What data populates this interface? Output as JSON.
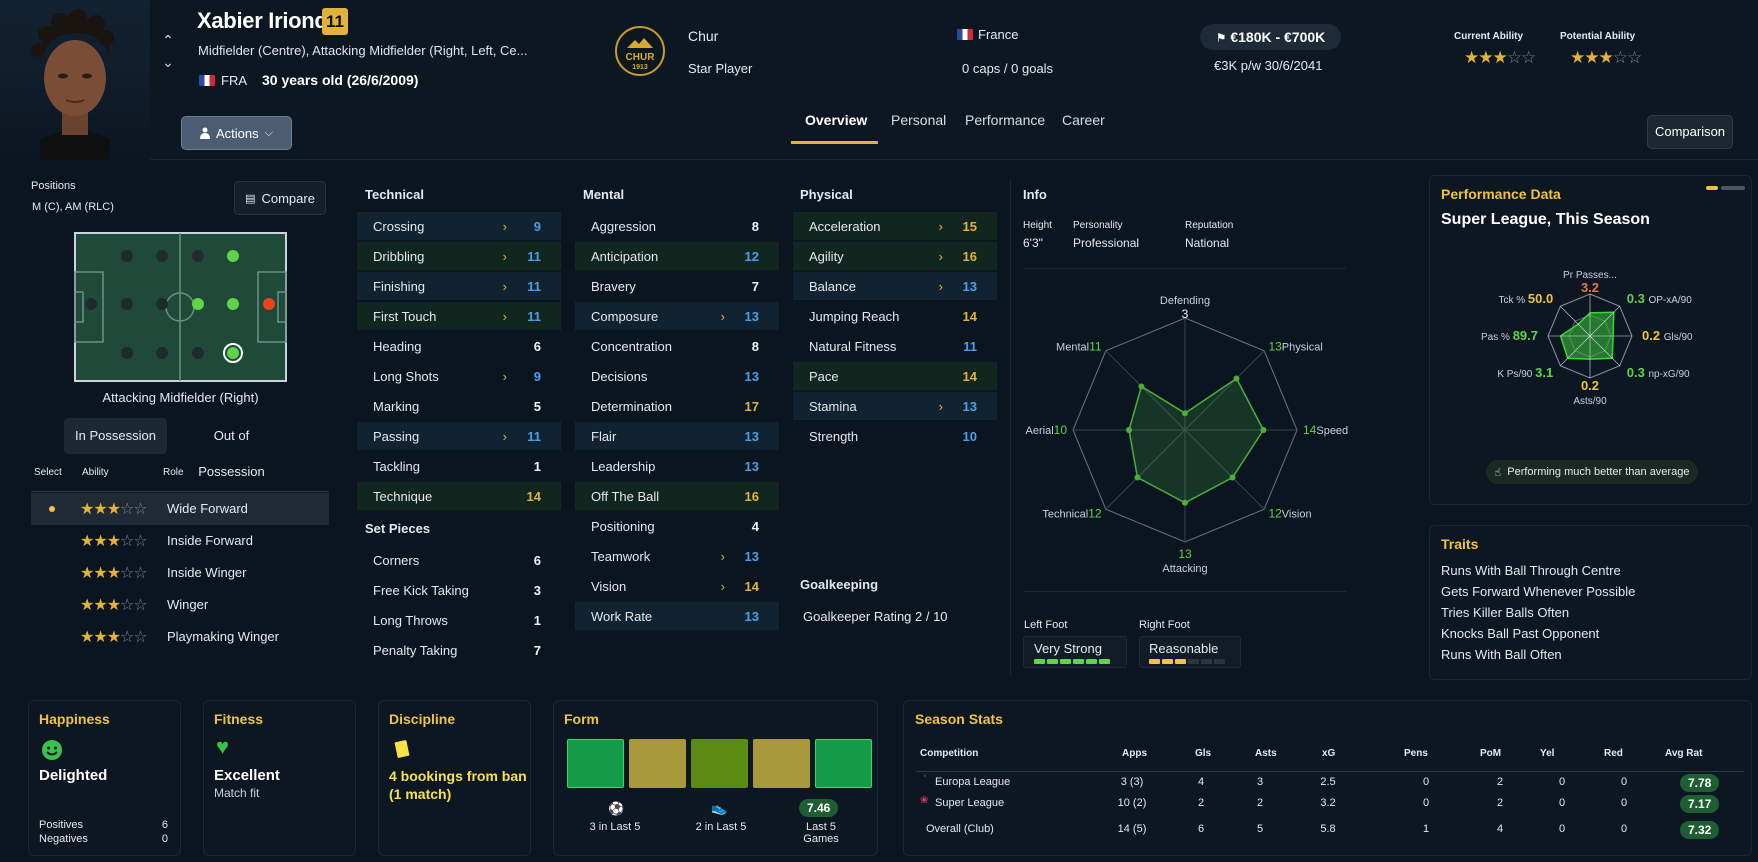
{
  "player": {
    "name": "Xabier Iriondo",
    "number": "11",
    "positions_long": "Midfielder (Centre), Attacking Midfielder (Right, Left, Ce...",
    "nationality_code": "FRA",
    "age": "30 years old (26/6/2009)",
    "club": "Chur",
    "club_crest_text": "CHUR",
    "club_crest_year": "1913",
    "status": "Star Player",
    "country": "France",
    "caps": "0 caps / 0 goals",
    "value": "€180K - €700K",
    "wage": "€3K p/w 30/6/2041",
    "current_ability_label": "Current Ability",
    "potential_ability_label": "Potential Ability",
    "current_ability_stars": 3,
    "potential_ability_stars": 3
  },
  "header": {
    "actions_label": "Actions",
    "tabs": [
      "Overview",
      "Personal",
      "Performance",
      "Career"
    ],
    "comparison_label": "Comparison"
  },
  "positions": {
    "label": "Positions",
    "value": "M (C), AM (RLC)",
    "compare_label": "Compare",
    "selected_position": "Attacking Midfielder (Right)",
    "tab_in": "In Possession",
    "tab_out": "Out of Possession",
    "col_select": "Select",
    "col_ability": "Ability",
    "col_role": "Role",
    "roles": [
      {
        "stars": 3,
        "name": "Wide Forward",
        "selected": true
      },
      {
        "stars": 3,
        "name": "Inside Forward",
        "selected": false
      },
      {
        "stars": 3,
        "name": "Inside Winger",
        "selected": false
      },
      {
        "stars": 3,
        "name": "Winger",
        "selected": false
      },
      {
        "stars": 3,
        "name": "Playmaking Winger",
        "selected": false
      }
    ]
  },
  "technical": {
    "title": "Technical",
    "attrs": [
      {
        "name": "Crossing",
        "value": "9",
        "arrow": true,
        "color": "blue",
        "hl": "b"
      },
      {
        "name": "Dribbling",
        "value": "11",
        "arrow": true,
        "color": "blue",
        "hl": "g"
      },
      {
        "name": "Finishing",
        "value": "11",
        "arrow": true,
        "color": "blue",
        "hl": "b"
      },
      {
        "name": "First Touch",
        "value": "11",
        "arrow": true,
        "color": "blue",
        "hl": "g"
      },
      {
        "name": "Heading",
        "value": "6",
        "arrow": false,
        "color": "white",
        "hl": ""
      },
      {
        "name": "Long Shots",
        "value": "9",
        "arrow": true,
        "color": "blue",
        "hl": ""
      },
      {
        "name": "Marking",
        "value": "5",
        "arrow": false,
        "color": "white",
        "hl": ""
      },
      {
        "name": "Passing",
        "value": "11",
        "arrow": true,
        "color": "blue",
        "hl": "b"
      },
      {
        "name": "Tackling",
        "value": "1",
        "arrow": false,
        "color": "white",
        "hl": ""
      },
      {
        "name": "Technique",
        "value": "14",
        "arrow": false,
        "color": "yellow",
        "hl": "g"
      }
    ]
  },
  "set_pieces": {
    "title": "Set Pieces",
    "attrs": [
      {
        "name": "Corners",
        "value": "6",
        "arrow": false,
        "color": "white",
        "hl": ""
      },
      {
        "name": "Free Kick Taking",
        "value": "3",
        "arrow": false,
        "color": "white",
        "hl": ""
      },
      {
        "name": "Long Throws",
        "value": "1",
        "arrow": false,
        "color": "white",
        "hl": ""
      },
      {
        "name": "Penalty Taking",
        "value": "7",
        "arrow": false,
        "color": "white",
        "hl": ""
      }
    ]
  },
  "mental": {
    "title": "Mental",
    "attrs": [
      {
        "name": "Aggression",
        "value": "8",
        "arrow": false,
        "color": "white",
        "hl": ""
      },
      {
        "name": "Anticipation",
        "value": "12",
        "arrow": false,
        "color": "blue",
        "hl": "g"
      },
      {
        "name": "Bravery",
        "value": "7",
        "arrow": false,
        "color": "white",
        "hl": ""
      },
      {
        "name": "Composure",
        "value": "13",
        "arrow": true,
        "color": "blue",
        "hl": "b"
      },
      {
        "name": "Concentration",
        "value": "8",
        "arrow": false,
        "color": "white",
        "hl": ""
      },
      {
        "name": "Decisions",
        "value": "13",
        "arrow": false,
        "color": "blue",
        "hl": ""
      },
      {
        "name": "Determination",
        "value": "17",
        "arrow": false,
        "color": "yellow",
        "hl": ""
      },
      {
        "name": "Flair",
        "value": "13",
        "arrow": false,
        "color": "blue",
        "hl": "b"
      },
      {
        "name": "Leadership",
        "value": "13",
        "arrow": false,
        "color": "blue",
        "hl": ""
      },
      {
        "name": "Off The Ball",
        "value": "16",
        "arrow": false,
        "color": "yellow",
        "hl": "g"
      },
      {
        "name": "Positioning",
        "value": "4",
        "arrow": false,
        "color": "white",
        "hl": ""
      },
      {
        "name": "Teamwork",
        "value": "13",
        "arrow": true,
        "color": "blue",
        "hl": ""
      },
      {
        "name": "Vision",
        "value": "14",
        "arrow": true,
        "color": "yellow",
        "hl": ""
      },
      {
        "name": "Work Rate",
        "value": "13",
        "arrow": false,
        "color": "blue",
        "hl": "b"
      }
    ]
  },
  "physical": {
    "title": "Physical",
    "attrs": [
      {
        "name": "Acceleration",
        "value": "15",
        "arrow": true,
        "color": "yellow",
        "hl": "g"
      },
      {
        "name": "Agility",
        "value": "16",
        "arrow": true,
        "color": "yellow",
        "hl": "g"
      },
      {
        "name": "Balance",
        "value": "13",
        "arrow": true,
        "color": "blue",
        "hl": "b"
      },
      {
        "name": "Jumping Reach",
        "value": "14",
        "arrow": false,
        "color": "yellow",
        "hl": ""
      },
      {
        "name": "Natural Fitness",
        "value": "11",
        "arrow": false,
        "color": "blue",
        "hl": ""
      },
      {
        "name": "Pace",
        "value": "14",
        "arrow": false,
        "color": "yellow",
        "hl": "g"
      },
      {
        "name": "Stamina",
        "value": "13",
        "arrow": true,
        "color": "blue",
        "hl": "b"
      },
      {
        "name": "Strength",
        "value": "10",
        "arrow": false,
        "color": "blue",
        "hl": ""
      }
    ]
  },
  "goalkeeping": {
    "title": "Goalkeeping",
    "rating": "Goalkeeper Rating 2 / 10"
  },
  "info": {
    "title": "Info",
    "height_label": "Height",
    "height": "6'3\"",
    "personality_label": "Personality",
    "personality": "Professional",
    "reputation_label": "Reputation",
    "reputation": "National",
    "left_foot_label": "Left Foot",
    "left_foot": "Very Strong",
    "left_foot_level": 6,
    "right_foot_label": "Right Foot",
    "right_foot": "Reasonable",
    "right_foot_level": 3,
    "foot_level_max": 6,
    "radar": [
      {
        "label": "Defending",
        "value": "3"
      },
      {
        "label": "Physical",
        "value": "13"
      },
      {
        "label": "Speed",
        "value": "14"
      },
      {
        "label": "Vision",
        "value": "12"
      },
      {
        "label": "Attacking",
        "value": "13"
      },
      {
        "label": "Technical",
        "value": "12"
      },
      {
        "label": "Aerial",
        "value": "10"
      },
      {
        "label": "Mental",
        "value": "11"
      }
    ],
    "radar_max": 20
  },
  "performance": {
    "title": "Performance Data",
    "subtitle": "Super League, This Season",
    "badge": "Performing much better than average",
    "metrics": [
      {
        "label": "Pr Passes...",
        "value": "3.2",
        "color": "#e8734a"
      },
      {
        "label": "OP-xA/90",
        "value": "0.3",
        "color": "#5fd34a"
      },
      {
        "label": "Gls/90",
        "value": "0.2",
        "color": "#f0c342"
      },
      {
        "label": "np-xG/90",
        "value": "0.3",
        "color": "#5fd34a"
      },
      {
        "label": "Asts/90",
        "value": "0.2",
        "color": "#f0c342"
      },
      {
        "label": "K Ps/90",
        "value": "3.1",
        "color": "#5fd34a"
      },
      {
        "label": "Pas %",
        "value": "89.7",
        "color": "#5fd34a"
      },
      {
        "label": "Tck %",
        "value": "50.0",
        "color": "#f0c342"
      }
    ],
    "metric_levels": [
      0.55,
      0.8,
      0.55,
      0.75,
      0.55,
      0.75,
      0.7,
      0.4
    ]
  },
  "traits": {
    "title": "Traits",
    "items": [
      "Runs With Ball Through Centre",
      "Gets Forward Whenever Possible",
      "Tries Killer Balls Often",
      "Knocks Ball Past Opponent",
      "Runs With Ball Often"
    ]
  },
  "happiness": {
    "title": "Happiness",
    "value": "Delighted",
    "positives_label": "Positives",
    "positives": "6",
    "negatives_label": "Negatives",
    "negatives": "0"
  },
  "fitness": {
    "title": "Fitness",
    "value": "Excellent",
    "sub": "Match fit"
  },
  "discipline": {
    "title": "Discipline",
    "value": "4 bookings from ban (1 match)"
  },
  "form": {
    "title": "Form",
    "boxes": [
      "#159a4a",
      "#a89a3b",
      "#5b8b12",
      "#a89a3b",
      "#159a4a"
    ],
    "goals": "3 in Last 5",
    "assists": "2 in Last 5",
    "avg": "7.46",
    "avg_label": "Last 5 Games"
  },
  "season": {
    "title": "Season Stats",
    "columns": [
      "Competition",
      "Apps",
      "Gls",
      "Asts",
      "xG",
      "Pens",
      "PoM",
      "Yel",
      "Red",
      "Avg Rat"
    ],
    "rows": [
      {
        "comp": "Europa League",
        "apps": "3 (3)",
        "gls": "4",
        "asts": "3",
        "xg": "2.5",
        "pens": "0",
        "pom": "2",
        "yel": "0",
        "red": "0",
        "rat": "7.78"
      },
      {
        "comp": "Super League",
        "apps": "10 (2)",
        "gls": "2",
        "asts": "2",
        "xg": "3.2",
        "pens": "0",
        "pom": "2",
        "yel": "0",
        "red": "0",
        "rat": "7.17"
      },
      {
        "comp": "Overall (Club)",
        "apps": "14 (5)",
        "gls": "6",
        "asts": "5",
        "xg": "5.8",
        "pens": "1",
        "pom": "4",
        "yel": "0",
        "red": "0",
        "rat": "7.32"
      }
    ]
  }
}
